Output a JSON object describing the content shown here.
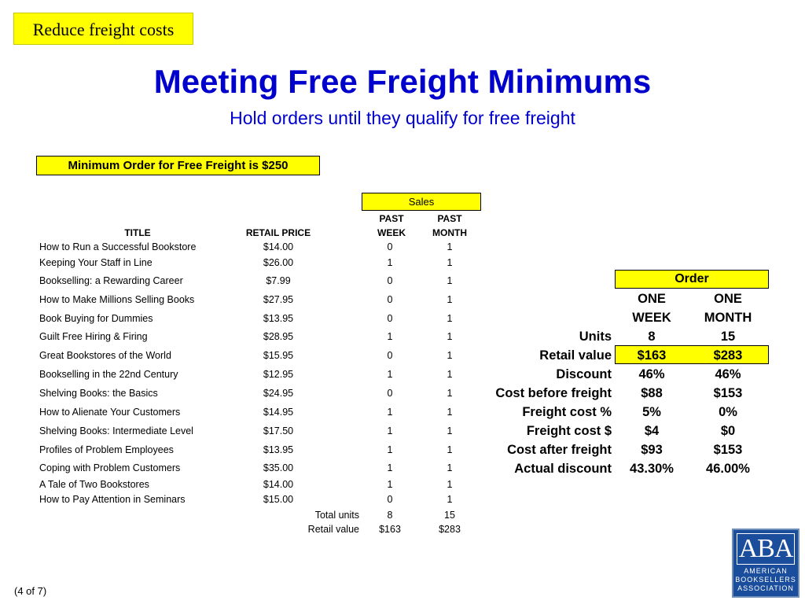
{
  "tag": "Reduce freight costs",
  "title": "Meeting Free Freight Minimums",
  "subtitle": "Hold orders until they qualify for free freight",
  "min_order": "Minimum Order for Free Freight is $250",
  "sales_label": "Sales",
  "headers": {
    "title": "TITLE",
    "price": "RETAIL PRICE",
    "week_line1": "PAST",
    "week_line2": "WEEK",
    "month_line1": "PAST",
    "month_line2": "MONTH"
  },
  "books": [
    {
      "title": "How to Run a Successful Bookstore",
      "price": "$14.00",
      "week": "0",
      "month": "1"
    },
    {
      "title": "Keeping Your Staff in Line",
      "price": "$26.00",
      "week": "1",
      "month": "1"
    },
    {
      "title": "Bookselling: a Rewarding Career",
      "price": "$7.99",
      "week": "0",
      "month": "1"
    },
    {
      "title": "How to Make Millions Selling Books",
      "price": "$27.95",
      "week": "0",
      "month": "1"
    },
    {
      "title": "Book Buying for Dummies",
      "price": "$13.95",
      "week": "0",
      "month": "1"
    },
    {
      "title": "Guilt Free Hiring & Firing",
      "price": "$28.95",
      "week": "1",
      "month": "1"
    },
    {
      "title": "Great Bookstores of the World",
      "price": "$15.95",
      "week": "0",
      "month": "1"
    },
    {
      "title": "Bookselling in the 22nd Century",
      "price": "$12.95",
      "week": "1",
      "month": "1"
    },
    {
      "title": "Shelving Books: the Basics",
      "price": "$24.95",
      "week": "0",
      "month": "1"
    },
    {
      "title": "How to Alienate Your Customers",
      "price": "$14.95",
      "week": "1",
      "month": "1"
    },
    {
      "title": "Shelving Books: Intermediate Level",
      "price": "$17.50",
      "week": "1",
      "month": "1"
    },
    {
      "title": "Profiles of Problem Employees",
      "price": "$13.95",
      "week": "1",
      "month": "1"
    },
    {
      "title": "Coping with Problem Customers",
      "price": "$35.00",
      "week": "1",
      "month": "1"
    },
    {
      "title": "A Tale of Two Bookstores",
      "price": "$14.00",
      "week": "1",
      "month": "1"
    },
    {
      "title": "How to Pay Attention in Seminars",
      "price": "$15.00",
      "week": "0",
      "month": "1"
    }
  ],
  "totals": {
    "units_label": "Total units",
    "units_week": "8",
    "units_month": "15",
    "value_label": "Retail value",
    "value_week": "$163",
    "value_month": "$283"
  },
  "order": {
    "label": "Order",
    "col1_line1": "ONE",
    "col1_line2": "WEEK",
    "col2_line1": "ONE",
    "col2_line2": "MONTH",
    "rows": [
      {
        "label": "Units",
        "week": "8",
        "month": "15"
      },
      {
        "label": "Retail value",
        "week": "$163",
        "month": "$283"
      },
      {
        "label": "Discount",
        "week": "46%",
        "month": "46%"
      },
      {
        "label": "Cost before freight",
        "week": "$88",
        "month": "$153"
      },
      {
        "label": "Freight cost  %",
        "week": "5%",
        "month": "0%"
      },
      {
        "label": "Freight cost  $",
        "week": "$4",
        "month": "$0"
      },
      {
        "label": "Cost after freight",
        "week": "$93",
        "month": "$153"
      },
      {
        "label": "Actual discount",
        "week": "43.30%",
        "month": "46.00%"
      }
    ]
  },
  "logo": {
    "letters": "ABA",
    "line1": "AMERICAN",
    "line2": "BOOKSELLERS",
    "line3": "ASSOCIATION"
  },
  "footer": "(4 of 7)",
  "colors": {
    "highlight": "#ffff00",
    "title_blue": "#0000cc",
    "logo_blue": "#1a4d9c"
  }
}
